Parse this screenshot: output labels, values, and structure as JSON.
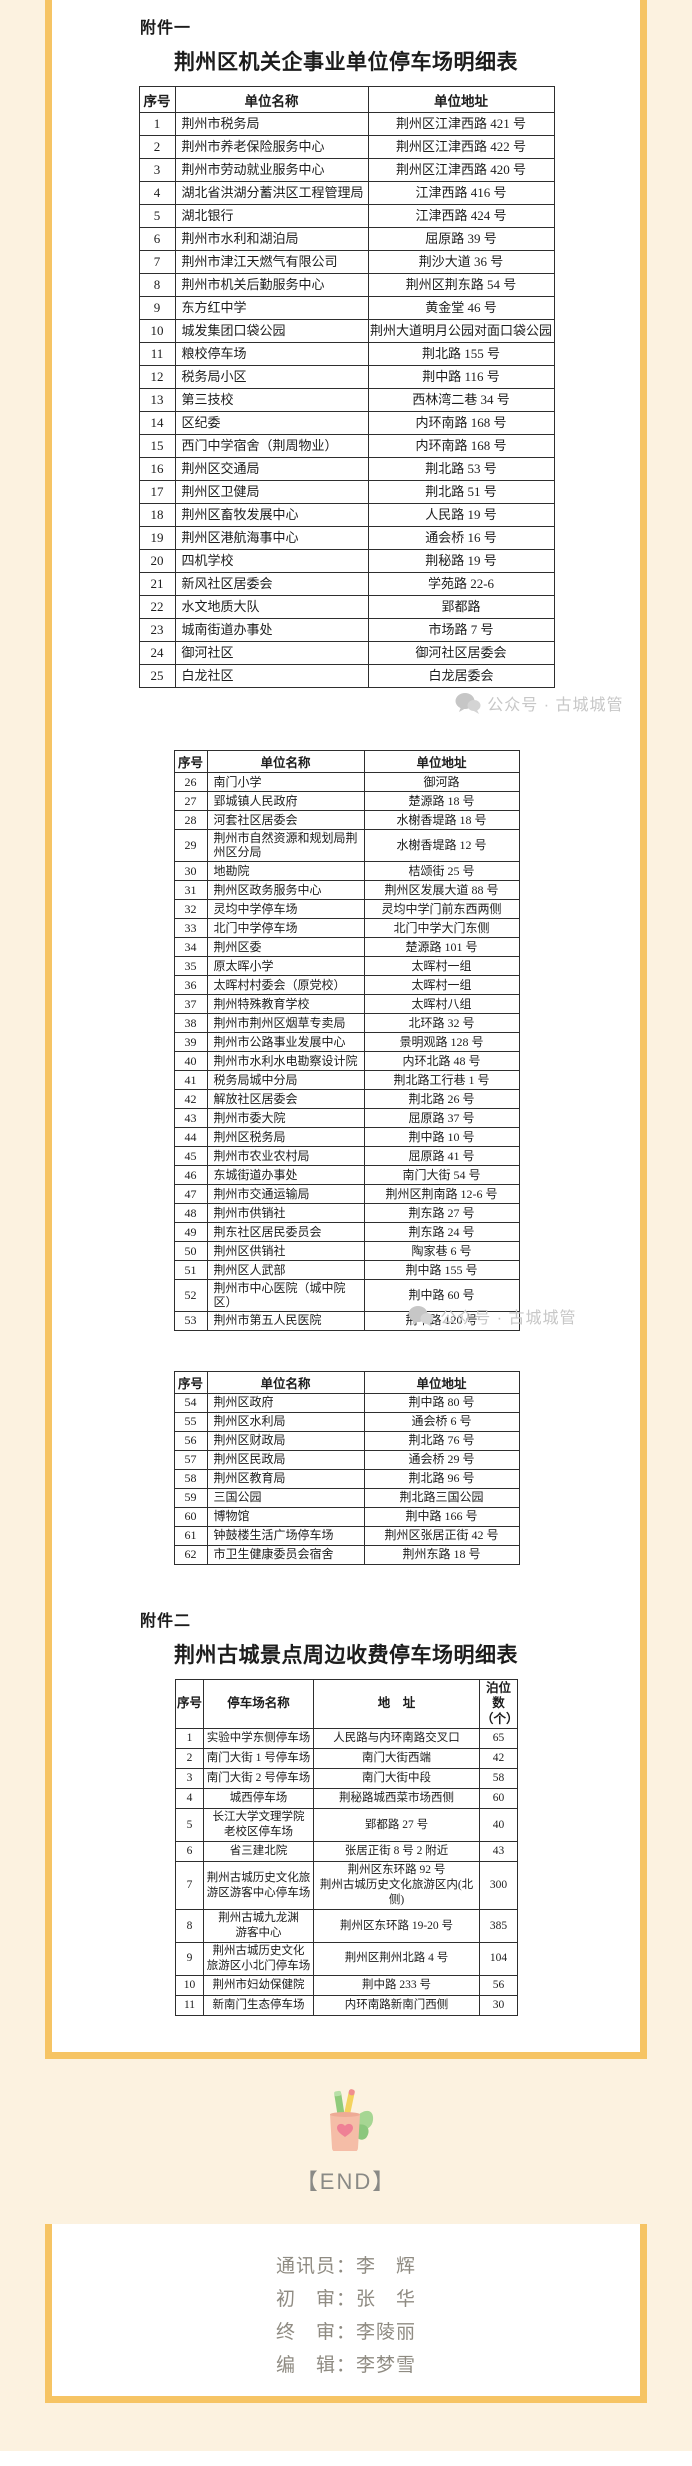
{
  "watermark": {
    "text": "公众号 · 古城城管"
  },
  "attachment1": {
    "label": "附件一",
    "title": "荆州区机关企事业单位停车场明细表",
    "columns": [
      "序号",
      "单位名称",
      "单位地址"
    ],
    "table1_rows": [
      [
        "1",
        "荆州市税务局",
        "荆州区江津西路 421 号"
      ],
      [
        "2",
        "荆州市养老保险服务中心",
        "荆州区江津西路 422 号"
      ],
      [
        "3",
        "荆州市劳动就业服务中心",
        "荆州区江津西路 420 号"
      ],
      [
        "4",
        "湖北省洪湖分蓄洪区工程管理局",
        "江津西路 416 号"
      ],
      [
        "5",
        "湖北银行",
        "江津西路 424 号"
      ],
      [
        "6",
        "荆州市水利和湖泊局",
        "屈原路 39 号"
      ],
      [
        "7",
        "荆州市津江天燃气有限公司",
        "荆沙大道 36 号"
      ],
      [
        "8",
        "荆州市机关后勤服务中心",
        "荆州区荆东路 54 号"
      ],
      [
        "9",
        "东方红中学",
        "黄金堂 46 号"
      ],
      [
        "10",
        "城发集团口袋公园",
        "荆州大道明月公园对面口袋公园"
      ],
      [
        "11",
        "粮校停车场",
        "荆北路 155 号"
      ],
      [
        "12",
        "税务局小区",
        "荆中路 116 号"
      ],
      [
        "13",
        "第三技校",
        "西林湾二巷 34 号"
      ],
      [
        "14",
        "区纪委",
        "内环南路 168 号"
      ],
      [
        "15",
        "西门中学宿舍（荆周物业）",
        "内环南路 168 号"
      ],
      [
        "16",
        "荆州区交通局",
        "荆北路 53 号"
      ],
      [
        "17",
        "荆州区卫健局",
        "荆北路 51 号"
      ],
      [
        "18",
        "荆州区畜牧发展中心",
        "人民路 19 号"
      ],
      [
        "19",
        "荆州区港航海事中心",
        "通会桥 16 号"
      ],
      [
        "20",
        "四机学校",
        "荆秘路 19 号"
      ],
      [
        "21",
        "新风社区居委会",
        "学苑路 22-6"
      ],
      [
        "22",
        "水文地质大队",
        "郢都路"
      ],
      [
        "23",
        "城南街道办事处",
        "市场路 7 号"
      ],
      [
        "24",
        "御河社区",
        "御河社区居委会"
      ],
      [
        "25",
        "白龙社区",
        "白龙居委会"
      ]
    ],
    "table2_rows": [
      [
        "26",
        "南门小学",
        "御河路"
      ],
      [
        "27",
        "郢城镇人民政府",
        "楚源路 18 号"
      ],
      [
        "28",
        "河套社区居委会",
        "水榭香堤路 18 号"
      ],
      [
        "29",
        "荆州市自然资源和规划局荆州区分局",
        "水榭香堤路 12 号"
      ],
      [
        "30",
        "地勘院",
        "桔颂街 25 号"
      ],
      [
        "31",
        "荆州区政务服务中心",
        "荆州区发展大道 88 号"
      ],
      [
        "32",
        "灵均中学停车场",
        "灵均中学门前东西两侧"
      ],
      [
        "33",
        "北门中学停车场",
        "北门中学大门东侧"
      ],
      [
        "34",
        "荆州区委",
        "楚源路 101 号"
      ],
      [
        "35",
        "原太晖小学",
        "太晖村一组"
      ],
      [
        "36",
        "太晖村村委会（原党校）",
        "太晖村一组"
      ],
      [
        "37",
        "荆州特殊教育学校",
        "太晖村八组"
      ],
      [
        "38",
        "荆州市荆州区烟草专卖局",
        "北环路 32 号"
      ],
      [
        "39",
        "荆州市公路事业发展中心",
        "景明观路 128 号"
      ],
      [
        "40",
        "荆州市水利水电勘察设计院",
        "内环北路 48 号"
      ],
      [
        "41",
        "税务局城中分局",
        "荆北路工行巷 1 号"
      ],
      [
        "42",
        "解放社区居委会",
        "荆北路 26 号"
      ],
      [
        "43",
        "荆州市委大院",
        "屈原路 37 号"
      ],
      [
        "44",
        "荆州区税务局",
        "荆中路 10 号"
      ],
      [
        "45",
        "荆州市农业农村局",
        "屈原路 41 号"
      ],
      [
        "46",
        "东城街道办事处",
        "南门大街 54 号"
      ],
      [
        "47",
        "荆州市交通运输局",
        "荆州区荆南路 12-6 号"
      ],
      [
        "48",
        "荆州市供销社",
        "荆东路 27 号"
      ],
      [
        "49",
        "荆东社区居民委员会",
        "荆东路 24 号"
      ],
      [
        "50",
        "荆州区供销社",
        "陶家巷 6 号"
      ],
      [
        "51",
        "荆州区人武部",
        "荆中路 155 号"
      ],
      [
        "52",
        "荆州市中心医院（城中院区）",
        "荆中路 60 号"
      ],
      [
        "53",
        "荆州市第五人民医院",
        "荆中路 120 号"
      ]
    ],
    "table3_rows": [
      [
        "54",
        "荆州区政府",
        "荆中路 80 号"
      ],
      [
        "55",
        "荆州区水利局",
        "通会桥 6 号"
      ],
      [
        "56",
        "荆州区财政局",
        "荆北路 76 号"
      ],
      [
        "57",
        "荆州区民政局",
        "通会桥 29 号"
      ],
      [
        "58",
        "荆州区教育局",
        "荆北路 96 号"
      ],
      [
        "59",
        "三国公园",
        "荆北路三国公园"
      ],
      [
        "60",
        "博物馆",
        "荆中路 166 号"
      ],
      [
        "61",
        "钟鼓楼生活广场停车场",
        "荆州区张居正街 42 号"
      ],
      [
        "62",
        "市卫生健康委员会宿舍",
        "荆州东路 18 号"
      ]
    ]
  },
  "attachment2": {
    "label": "附件二",
    "title": "荆州古城景点周边收费停车场明细表",
    "columns": [
      "序号",
      "停车场名称",
      "地　址",
      "泊位数\n（个）"
    ],
    "rows": [
      [
        "1",
        "实验中学东侧停车场",
        "人民路与内环南路交叉口",
        "65"
      ],
      [
        "2",
        "南门大街 1 号停车场",
        "南门大街西端",
        "42"
      ],
      [
        "3",
        "南门大街 2 号停车场",
        "南门大街中段",
        "58"
      ],
      [
        "4",
        "城西停车场",
        "荆秘路城西菜市场西侧",
        "60"
      ],
      [
        "5",
        "长江大学文理学院\n老校区停车场",
        "郢都路 27 号",
        "40"
      ],
      [
        "6",
        "省三建北院",
        "张居正街 8 号 2 附近",
        "43"
      ],
      [
        "7",
        "荆州古城历史文化旅\n游区游客中心停车场",
        "荆州区东环路 92 号\n荆州古城历史文化旅游区内(北侧)",
        "300"
      ],
      [
        "8",
        "荆州古城九龙渊\n游客中心",
        "荆州区东环路 19-20 号",
        "385"
      ],
      [
        "9",
        "荆州古城历史文化\n旅游区小北门停车场",
        "荆州区荆州北路 4 号",
        "104"
      ],
      [
        "10",
        "荆州市妇幼保健院",
        "荆中路 233 号",
        "56"
      ],
      [
        "11",
        "新南门生态停车场",
        "内环南路新南门西侧",
        "30"
      ]
    ]
  },
  "end_marker": "【END】",
  "footer": {
    "lines": [
      "通讯员：李　辉",
      "初　审：张　华",
      "终　审：李陵丽",
      "编　辑：李梦雪"
    ]
  },
  "colors": {
    "accent_orange": "#f6c464",
    "cream_background": "#fcf2e0",
    "table_border": "#2e2e2e",
    "watermark_gray": "#c7c7c7",
    "footer_gray": "#8f8b82"
  }
}
